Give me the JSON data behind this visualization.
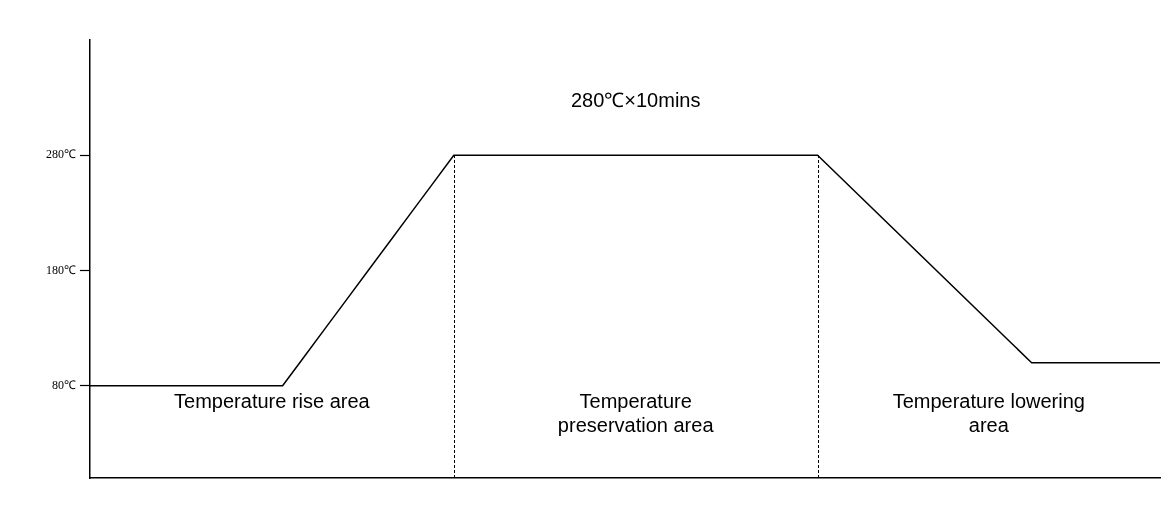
{
  "chart_data": {
    "type": "line",
    "categories": [
      null,
      null,
      null,
      null,
      null,
      null,
      null,
      null,
      null,
      null,
      null,
      null,
      null,
      null,
      null,
      null,
      null,
      null,
      null,
      null,
      null,
      null,
      null,
      null,
      null,
      null,
      null,
      null,
      null,
      null,
      null,
      null,
      null,
      null,
      null,
      null,
      null,
      null,
      null,
      null,
      null,
      null,
      null,
      null,
      null,
      null,
      null,
      null,
      null,
      null,
      null
    ],
    "series": [
      {
        "color": "#000000",
        "values": [
          80,
          80,
          80,
          80,
          80,
          80,
          80,
          80,
          80,
          80,
          105,
          130,
          155,
          180,
          205,
          230,
          255,
          280,
          280,
          280,
          280,
          280,
          280,
          280,
          280,
          280,
          280,
          280,
          280,
          280,
          280,
          280,
          280,
          280,
          280,
          262,
          244,
          226,
          208,
          190,
          172,
          154,
          136,
          118,
          100,
          100,
          100,
          100,
          100,
          100,
          100
        ]
      }
    ],
    "ylim": [
      0,
      380
    ],
    "yticks": [
      {
        "value": 80,
        "label": "80℃"
      },
      {
        "value": 180,
        "label": "180℃"
      },
      {
        "value": 280,
        "label": "280℃"
      }
    ],
    "tick_labels": "y",
    "grid": false,
    "legend": false,
    "marker": "none",
    "line_style": "solid",
    "annotations": [
      "280℃×10mins",
      "Temperature rise area",
      "Temperature preservation area",
      "Temperature lowering area"
    ]
  }
}
